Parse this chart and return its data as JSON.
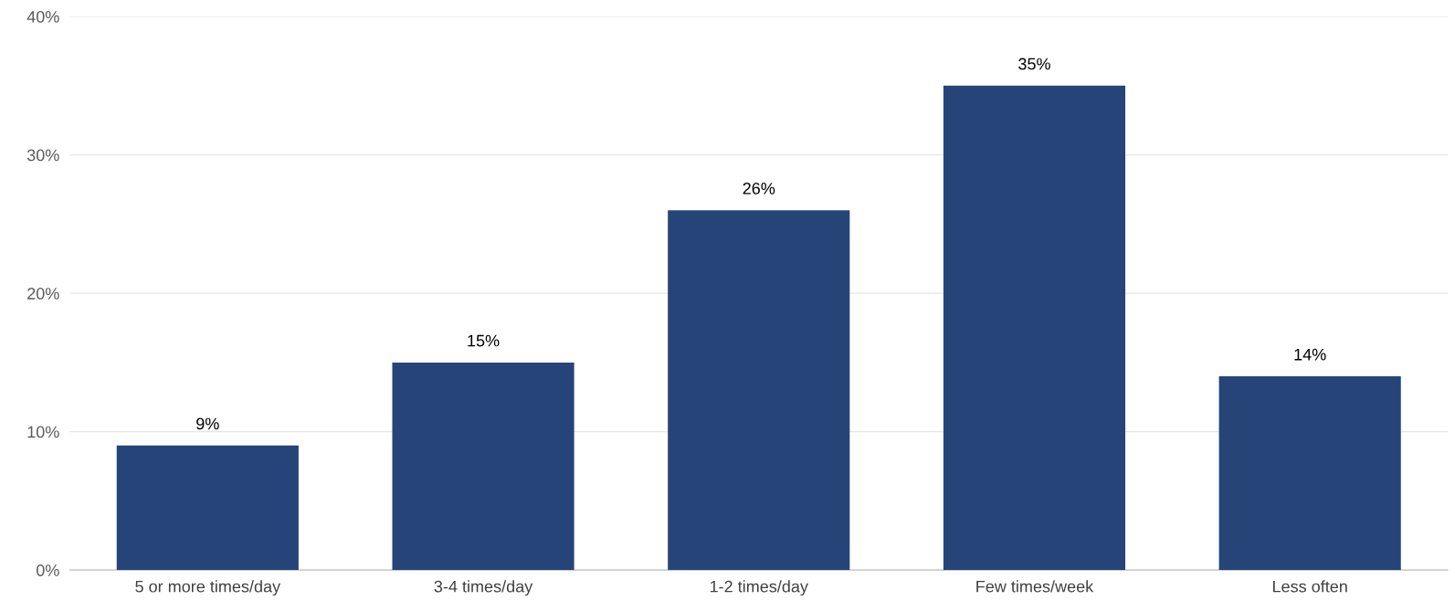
{
  "chart_data": {
    "type": "bar",
    "categories": [
      "5 or more times/day",
      "3-4 times/day",
      "1-2 times/day",
      "Few times/week",
      "Less often"
    ],
    "values": [
      9,
      15,
      26,
      35,
      14
    ],
    "value_labels": [
      "9%",
      "15%",
      "26%",
      "35%",
      "14%"
    ],
    "color": "#264478",
    "ylim": [
      0,
      40
    ],
    "yticks": [
      {
        "value": 0,
        "label": "0%"
      },
      {
        "value": 10,
        "label": "10%"
      },
      {
        "value": 20,
        "label": "20%"
      },
      {
        "value": 30,
        "label": "30%"
      },
      {
        "value": 40,
        "label": "40%"
      }
    ],
    "grid": "y"
  }
}
